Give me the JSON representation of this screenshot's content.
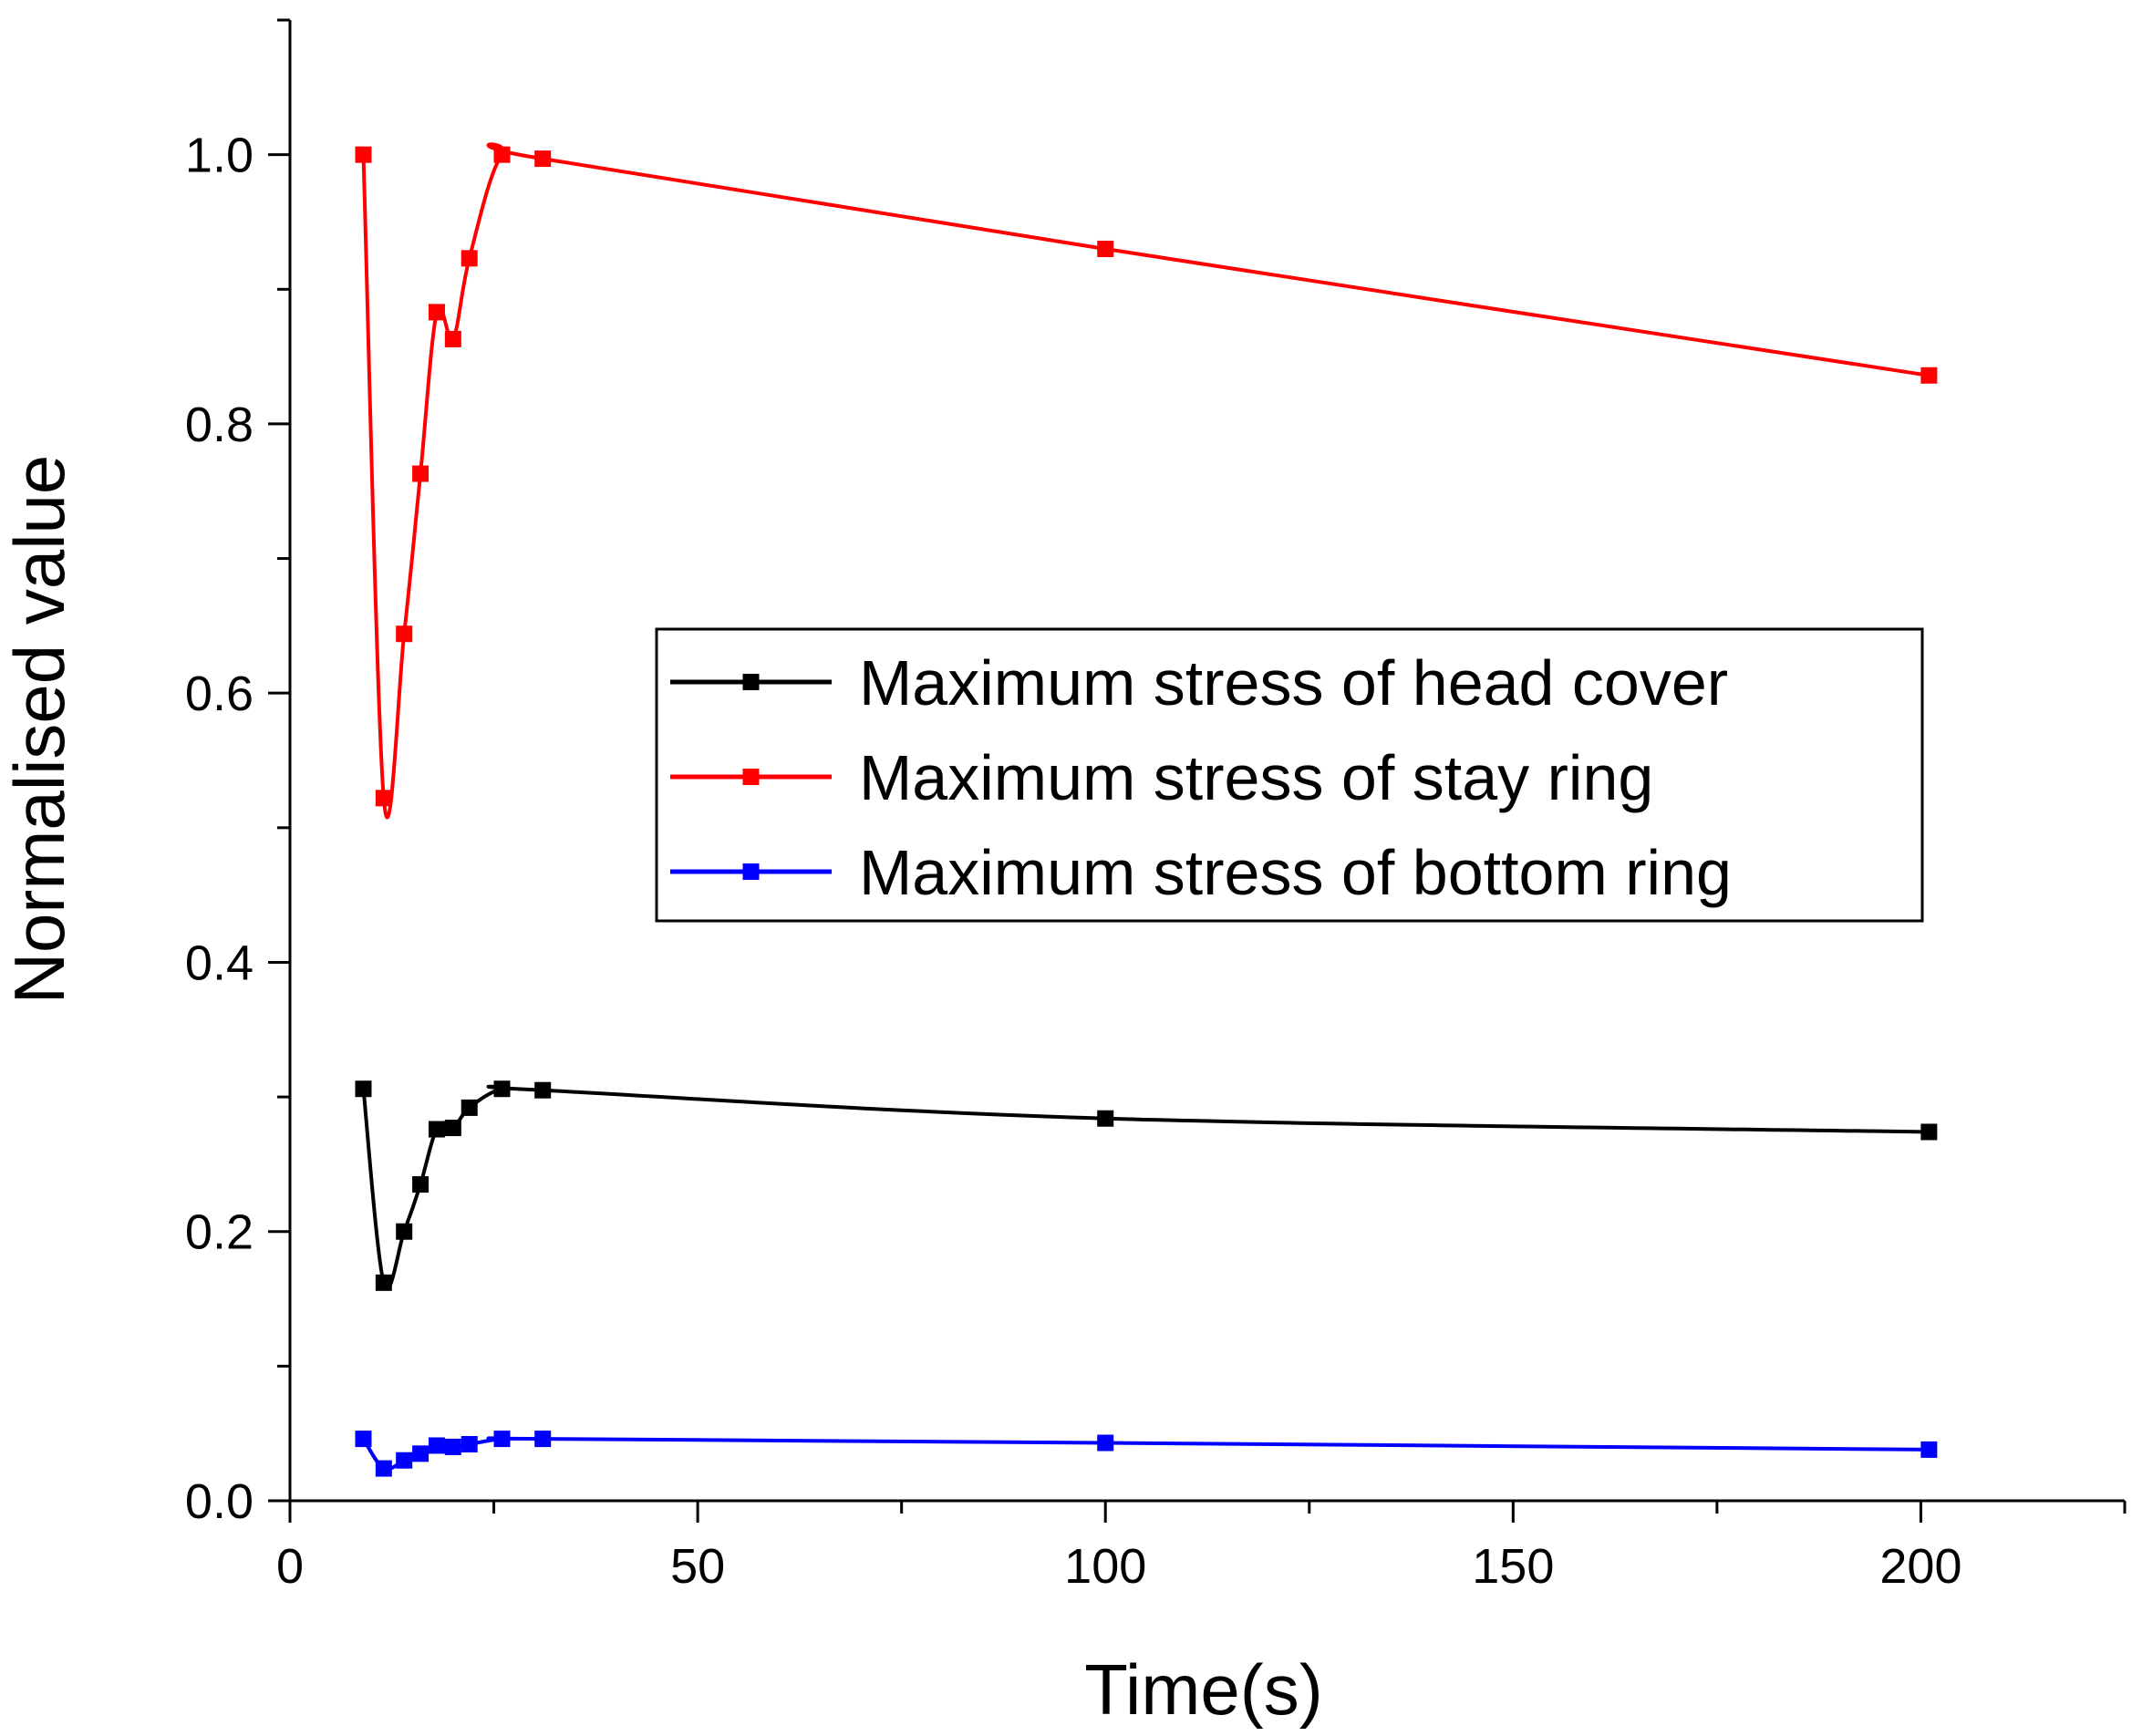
{
  "chart_data": {
    "type": "line",
    "title": "",
    "xlabel": "Time(s)",
    "ylabel": "Normalised value",
    "xlim": [
      0,
      225
    ],
    "ylim": [
      0,
      1.1
    ],
    "xticks": [
      0,
      50,
      100,
      150,
      200
    ],
    "xtick_labels": [
      "0",
      "50",
      "100",
      "150",
      "200"
    ],
    "x_minor_step": 25,
    "yticks": [
      0.0,
      0.2,
      0.4,
      0.6,
      0.8,
      1.0
    ],
    "ytick_labels": [
      "0.0",
      "0.2",
      "0.4",
      "0.6",
      "0.8",
      "1.0"
    ],
    "y_minor_step": 0.1,
    "grid": false,
    "legend_position": "center-right",
    "series": [
      {
        "name": "Maximum stress of head cover",
        "color": "#000000",
        "x": [
          9,
          11.5,
          14,
          16,
          18,
          20,
          22,
          26,
          31,
          100,
          201
        ],
        "y": [
          0.306,
          0.162,
          0.2,
          0.235,
          0.276,
          0.277,
          0.292,
          0.306,
          0.305,
          0.284,
          0.274
        ]
      },
      {
        "name": "Maximum stress of stay ring",
        "color": "#ff0000",
        "x": [
          9,
          11.5,
          14,
          16,
          18,
          20,
          22,
          26,
          31,
          100,
          201
        ],
        "y": [
          1.0,
          0.522,
          0.644,
          0.763,
          0.883,
          0.863,
          0.923,
          1.0,
          0.997,
          0.93,
          0.836
        ]
      },
      {
        "name": "Maximum stress of bottom ring",
        "color": "#0000ff",
        "x": [
          9,
          11.5,
          14,
          16,
          18,
          20,
          22,
          26,
          31,
          100,
          201
        ],
        "y": [
          0.046,
          0.024,
          0.03,
          0.035,
          0.041,
          0.04,
          0.042,
          0.046,
          0.046,
          0.043,
          0.038
        ]
      }
    ]
  }
}
